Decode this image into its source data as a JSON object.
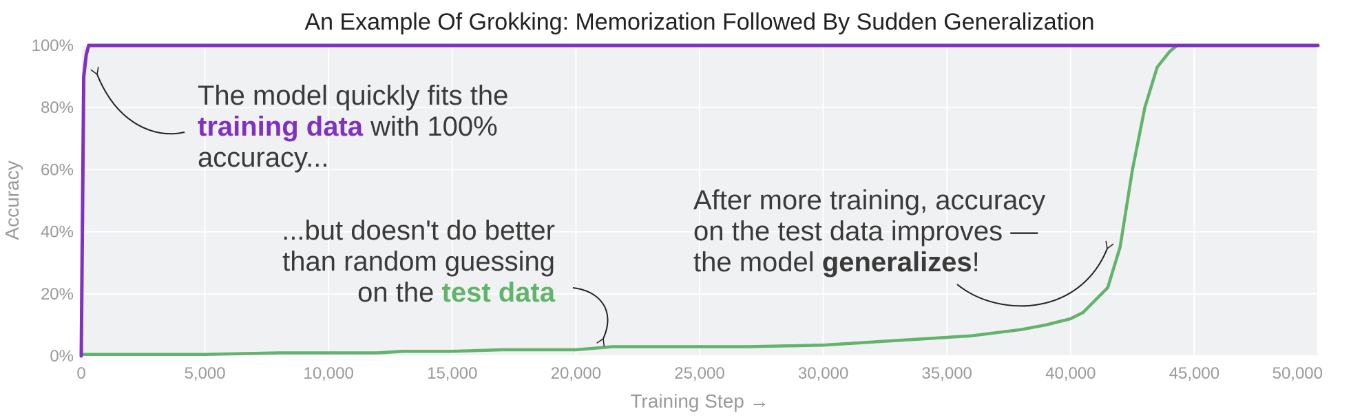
{
  "chart_data": {
    "type": "line",
    "title": "An Example Of Grokking: Memorization Followed By Sudden Generalization",
    "xlabel": "Training Step →",
    "ylabel": "Accuracy",
    "xlim": [
      0,
      50000
    ],
    "ylim": [
      0,
      100
    ],
    "grid": true,
    "x_ticks": [
      0,
      5000,
      10000,
      15000,
      20000,
      25000,
      30000,
      35000,
      40000,
      45000,
      50000
    ],
    "x_tick_labels": [
      "0",
      "5,000",
      "10,000",
      "15,000",
      "20,000",
      "25,000",
      "30,000",
      "35,000",
      "40,000",
      "45,000",
      "50,000"
    ],
    "y_ticks": [
      0,
      20,
      40,
      60,
      80,
      100
    ],
    "y_tick_labels": [
      "0%",
      "20%",
      "40%",
      "60%",
      "80%",
      "100%"
    ],
    "colors": {
      "train": "#7f31c2",
      "test": "#62b36b",
      "plot_bg": "#f0f1f3",
      "grid": "#ffffff",
      "annotation_text": "#3a3a3a",
      "arrow": "#222222"
    },
    "series": [
      {
        "key": "train",
        "x": [
          0,
          100,
          200,
          300,
          500,
          1000,
          5000,
          10000,
          20000,
          30000,
          40000,
          50000
        ],
        "values": [
          0,
          90,
          97,
          100,
          100,
          100,
          100,
          100,
          100,
          100,
          100,
          100
        ]
      },
      {
        "key": "test",
        "x": [
          0,
          2000,
          5000,
          8000,
          10000,
          12000,
          13000,
          15000,
          17000,
          20000,
          21500,
          23000,
          25000,
          27000,
          30000,
          32000,
          34000,
          36000,
          37000,
          38000,
          39000,
          40000,
          40500,
          41000,
          41500,
          42000,
          42500,
          43000,
          43500,
          44000,
          44300,
          44800,
          45500,
          47000,
          50000
        ],
        "values": [
          0.5,
          0.5,
          0.5,
          1,
          1,
          1,
          1.5,
          1.5,
          2,
          2,
          3,
          3,
          3,
          3,
          3.5,
          4.5,
          5.5,
          6.5,
          7.5,
          8.5,
          10,
          12,
          14,
          18,
          22,
          35,
          60,
          80,
          93,
          98,
          100,
          100,
          100,
          100,
          100
        ]
      }
    ],
    "annotations": [
      {
        "key": "train_note",
        "lines": [
          [
            {
              "text": "The model quickly fits the"
            }
          ],
          [
            {
              "text": "training data",
              "bold": true,
              "color": "#7f31c2"
            },
            {
              "text": " with 100%"
            }
          ],
          [
            {
              "text": "accuracy..."
            }
          ]
        ]
      },
      {
        "key": "test_note",
        "lines": [
          [
            {
              "text": "...but doesn't do better"
            }
          ],
          [
            {
              "text": "than random guessing"
            }
          ],
          [
            {
              "text": "on the "
            },
            {
              "text": "test data",
              "bold": true,
              "color": "#62b36b"
            }
          ]
        ]
      },
      {
        "key": "generalize_note",
        "lines": [
          [
            {
              "text": "After more training, accuracy"
            }
          ],
          [
            {
              "text": "on the test data improves —"
            }
          ],
          [
            {
              "text": "the model "
            },
            {
              "text": "generalizes",
              "bold": true,
              "color": "#3a3a3a"
            },
            {
              "text": "!"
            }
          ]
        ]
      }
    ]
  }
}
